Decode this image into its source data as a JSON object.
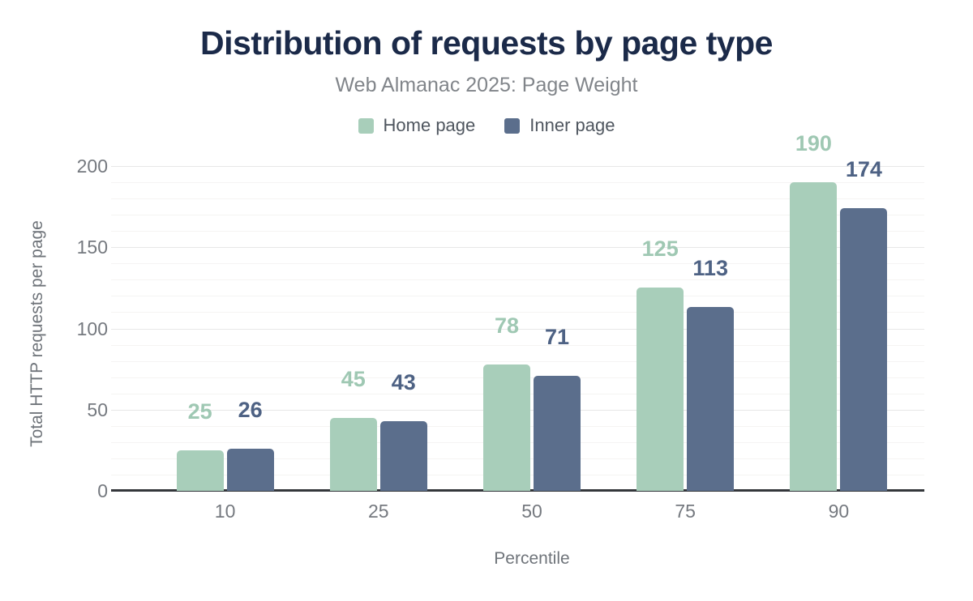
{
  "title": "Distribution of requests by page type",
  "subtitle": "Web Almanac 2025: Page Weight",
  "chart_data": {
    "type": "bar",
    "categories": [
      "10",
      "25",
      "50",
      "75",
      "90"
    ],
    "series": [
      {
        "name": "Home page",
        "color": "#a8ceba",
        "label_color": "#9fc8b3",
        "values": [
          25,
          45,
          78,
          125,
          190
        ]
      },
      {
        "name": "Inner page",
        "color": "#5b6e8c",
        "label_color": "#4e6284",
        "values": [
          26,
          43,
          71,
          113,
          174
        ]
      }
    ],
    "title": "Distribution of requests by page type",
    "subtitle": "Web Almanac 2025: Page Weight",
    "xlabel": "Percentile",
    "ylabel": "Total HTTP requests per page",
    "ylim": [
      0,
      200
    ],
    "ytick_step": 50,
    "minor_gridline_step": 10,
    "grid": "horizontal",
    "legend_position": "top"
  },
  "colors": {
    "title": "#1b2a49",
    "subtitle": "#81858a",
    "axis_line": "#34373b",
    "tick_label": "#75797f",
    "major_gridline": "#e7e7e7",
    "minor_gridline": "#f5f4f3",
    "background": "#ffffff"
  }
}
